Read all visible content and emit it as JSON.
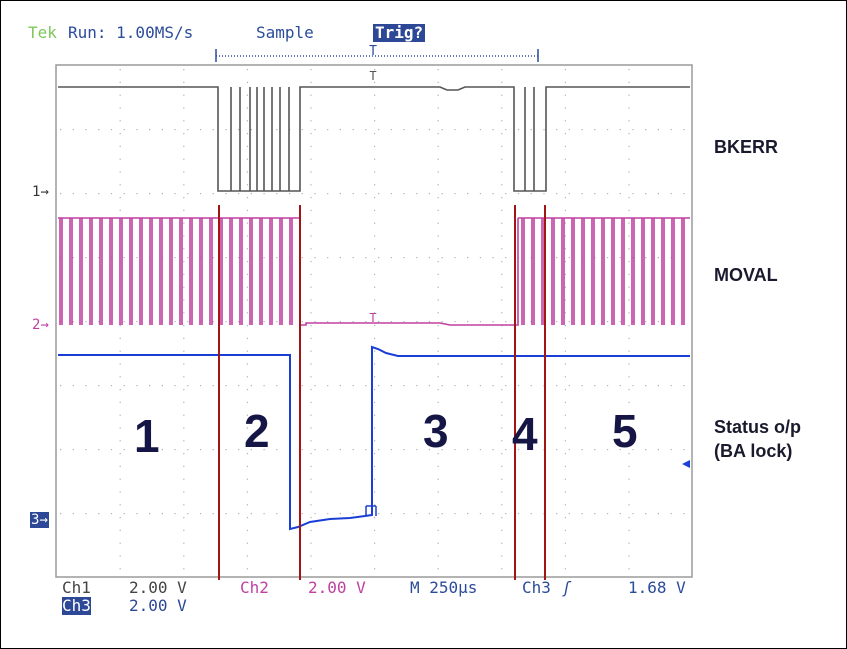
{
  "header": {
    "brand": "Tek",
    "status": "Run: 1.00MS/s",
    "mode": "Sample",
    "trigger_state": "Trig?"
  },
  "trigger_marker": "T",
  "channels": [
    {
      "id": "ch1",
      "marker": "1",
      "label": "BKERR",
      "color": "#555555"
    },
    {
      "id": "ch2",
      "marker": "2",
      "label": "MOVAL",
      "color": "#c040a0"
    },
    {
      "id": "ch3",
      "marker": "3",
      "label_line1": "Status o/p",
      "label_line2": "(BA lock)",
      "color": "#1a3fd6"
    }
  ],
  "zones": [
    "1",
    "2",
    "3",
    "4",
    "5"
  ],
  "readout": {
    "ch1_name": "Ch1",
    "ch1_scale": "2.00 V",
    "ch2_name": "Ch2",
    "ch2_scale": "2.00 V",
    "timebase": "M 250µs",
    "trig_source": "Ch3",
    "trig_level": "1.68 V",
    "ch3_name": "Ch3",
    "ch3_scale": "2.00 V"
  },
  "colors": {
    "grid_border": "#9a9a9a",
    "tek_green": "#7ec85a",
    "header_blue": "#2b4c9a",
    "trig_box": "#2c4896",
    "zone_line": "#a31515"
  }
}
